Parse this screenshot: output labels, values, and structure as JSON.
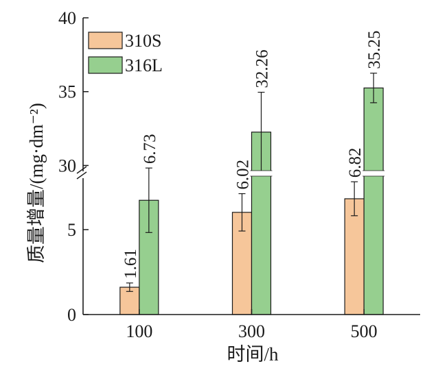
{
  "chart_data": {
    "type": "bar",
    "title": "",
    "xlabel": "时间/h",
    "ylabel": "质量增量/(mg·dm⁻²)",
    "categories": [
      "100",
      "300",
      "500"
    ],
    "series": [
      {
        "name": "310S",
        "color": "#f6c69a",
        "values": [
          1.61,
          6.02,
          6.82
        ],
        "value_labels": [
          "1.61",
          "6.02",
          "6.82"
        ],
        "error": [
          0.25,
          1.1,
          1.0
        ]
      },
      {
        "name": "316L",
        "color": "#96cf8f",
        "values": [
          6.73,
          32.26,
          35.25
        ],
        "value_labels": [
          "6.73",
          "32.26",
          "35.25"
        ],
        "error": [
          1.9,
          2.7,
          1.0
        ]
      }
    ],
    "y_axis": {
      "broken": true,
      "lower_range": [
        0,
        9
      ],
      "upper_range": [
        29,
        40
      ],
      "lower_ticks": [
        "0",
        "5"
      ],
      "upper_ticks": [
        "30",
        "35",
        "40"
      ]
    },
    "legend_position": "top-left",
    "grid": false
  }
}
